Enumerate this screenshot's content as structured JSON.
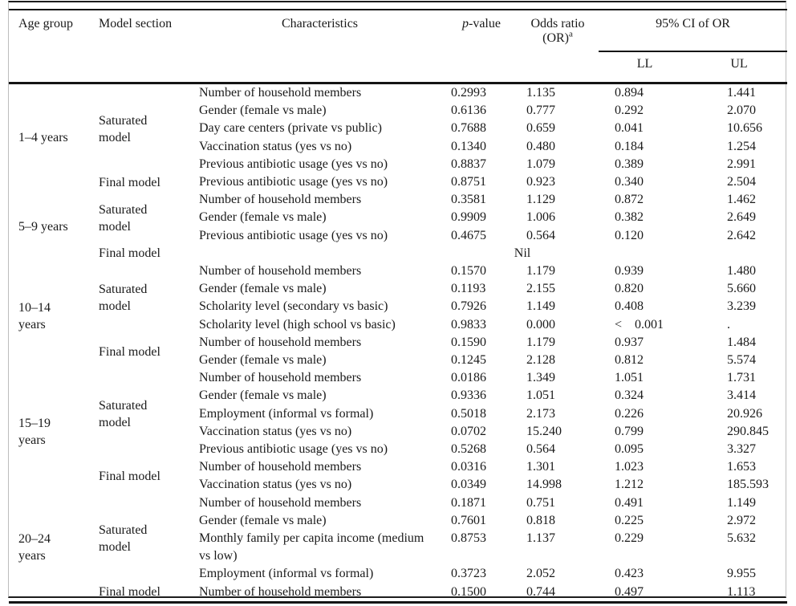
{
  "table": {
    "header": {
      "age_group": "Age group",
      "model_section": "Model section",
      "characteristics": "Characteristics",
      "p_value": {
        "italic": "p",
        "rest": "-value"
      },
      "odds_ratio": {
        "line1": "Odds ratio",
        "line2": "(OR)",
        "sup": "a"
      },
      "ci_span": "95% CI of OR",
      "ll": "LL",
      "ul": "UL"
    },
    "groups": [
      {
        "age_group": "1–4 years",
        "sections": [
          {
            "name": "Saturated model",
            "rows": [
              {
                "characteristics": "Number of household members",
                "p": "0.2993",
                "or": "1.135",
                "ll": "0.894",
                "ul": "1.441"
              },
              {
                "characteristics": "Gender (female vs male)",
                "p": "0.6136",
                "or": "0.777",
                "ll": "0.292",
                "ul": "2.070"
              },
              {
                "characteristics": "Day care centers (private vs public)",
                "p": "0.7688",
                "or": "0.659",
                "ll": "0.041",
                "ul": "10.656"
              },
              {
                "characteristics": "Vaccination status (yes vs no)",
                "p": "0.1340",
                "or": "0.480",
                "ll": "0.184",
                "ul": "1.254"
              },
              {
                "characteristics": "Previous antibiotic usage (yes vs no)",
                "p": "0.8837",
                "or": "1.079",
                "ll": "0.389",
                "ul": "2.991"
              }
            ]
          },
          {
            "name": "Final model",
            "rows": [
              {
                "characteristics": "Previous antibiotic usage (yes vs no)",
                "p": "0.8751",
                "or": "0.923",
                "ll": "0.340",
                "ul": "2.504"
              }
            ]
          }
        ]
      },
      {
        "age_group": "5–9 years",
        "sections": [
          {
            "name": "Saturated model",
            "rows": [
              {
                "characteristics": "Number of household members",
                "p": "0.3581",
                "or": "1.129",
                "ll": "0.872",
                "ul": "1.462"
              },
              {
                "characteristics": "Gender (female vs male)",
                "p": "0.9909",
                "or": "1.006",
                "ll": "0.382",
                "ul": "2.649"
              },
              {
                "characteristics": "Previous antibiotic usage (yes vs no)",
                "p": "0.4675",
                "or": "0.564",
                "ll": "0.120",
                "ul": "2.642"
              }
            ]
          },
          {
            "name": "Final model",
            "rows": [
              {
                "nil": "Nil"
              }
            ]
          }
        ]
      },
      {
        "age_group": "10–14 years",
        "sections": [
          {
            "name": "Saturated model",
            "rows": [
              {
                "characteristics": "Number of household members",
                "p": "0.1570",
                "or": "1.179",
                "ll": "0.939",
                "ul": "1.480"
              },
              {
                "characteristics": "Gender (female vs male)",
                "p": "0.1193",
                "or": "2.155",
                "ll": "0.820",
                "ul": "5.660"
              },
              {
                "characteristics": "Scholarity level (secondary vs basic)",
                "p": "0.7926",
                "or": "1.149",
                "ll": "0.408",
                "ul": "3.239"
              },
              {
                "characteristics": "Scholarity level (high school vs basic)",
                "p": "0.9833",
                "or": "0.000",
                "ll": "<    0.001",
                "ul": "."
              }
            ]
          },
          {
            "name": "Final model",
            "rows": [
              {
                "characteristics": "Number of household members",
                "p": "0.1590",
                "or": "1.179",
                "ll": "0.937",
                "ul": "1.484"
              },
              {
                "characteristics": "Gender (female vs male)",
                "p": "0.1245",
                "or": "2.128",
                "ll": "0.812",
                "ul": "5.574"
              }
            ]
          }
        ]
      },
      {
        "age_group": "15–19 years",
        "sections": [
          {
            "name": "Saturated model",
            "rows": [
              {
                "characteristics": "Number of household members",
                "p": "0.0186",
                "or": "1.349",
                "ll": "1.051",
                "ul": "1.731"
              },
              {
                "characteristics": "Gender (female vs male)",
                "p": "0.9336",
                "or": "1.051",
                "ll": "0.324",
                "ul": "3.414"
              },
              {
                "characteristics": "Employment (informal vs formal)",
                "p": "0.5018",
                "or": "2.173",
                "ll": "0.226",
                "ul": "20.926"
              },
              {
                "characteristics": "Vaccination status (yes vs no)",
                "p": "0.0702",
                "or": "15.240",
                "ll": "0.799",
                "ul": "290.845"
              },
              {
                "characteristics": "Previous antibiotic usage (yes vs no)",
                "p": "0.5268",
                "or": "0.564",
                "ll": "0.095",
                "ul": "3.327"
              }
            ]
          },
          {
            "name": "Final model",
            "rows": [
              {
                "characteristics": "Number of household members",
                "p": "0.0316",
                "or": "1.301",
                "ll": "1.023",
                "ul": "1.653"
              },
              {
                "characteristics": "Vaccination status (yes vs no)",
                "p": "0.0349",
                "or": "14.998",
                "ll": "1.212",
                "ul": "185.593"
              }
            ]
          }
        ]
      },
      {
        "age_group": "20–24 years",
        "sections": [
          {
            "name": "Saturated model",
            "rows": [
              {
                "characteristics": "Number of household members",
                "p": "0.1871",
                "or": "0.751",
                "ll": "0.491",
                "ul": "1.149"
              },
              {
                "characteristics": "Gender (female vs male)",
                "p": "0.7601",
                "or": "0.818",
                "ll": "0.225",
                "ul": "2.972"
              },
              {
                "characteristics": "Monthly family per capita income (medium vs low)",
                "p": "0.8753",
                "or": "1.137",
                "ll": "0.229",
                "ul": "5.632"
              },
              {
                "characteristics": "Employment (informal vs formal)",
                "p": "0.3723",
                "or": "2.052",
                "ll": "0.423",
                "ul": "9.955"
              }
            ]
          },
          {
            "name": "Final model",
            "rows": [
              {
                "characteristics": "Number of household members",
                "p": "0.1500",
                "or": "0.744",
                "ll": "0.497",
                "ul": "1.113"
              }
            ]
          }
        ]
      }
    ]
  }
}
